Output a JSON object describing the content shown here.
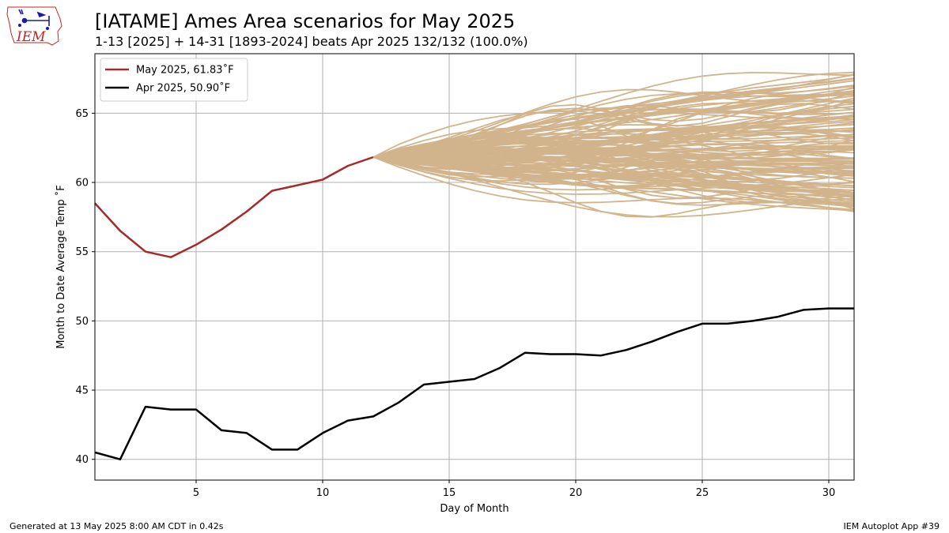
{
  "chart_data": {
    "type": "line",
    "title": "[IATAME] Ames Area scenarios for May 2025",
    "subtitle": "1-13 [2025] + 14-31 [1893-2024] beats Apr 2025 132/132 (100.0%)",
    "xlabel": "Day of Month",
    "ylabel": "Month to Date Average Temp ˚F",
    "xlim": [
      1,
      31
    ],
    "ylim": [
      38.5,
      69.3
    ],
    "xticks": [
      5,
      10,
      15,
      20,
      25,
      30
    ],
    "yticks": [
      40,
      45,
      50,
      55,
      60,
      65
    ],
    "grid": true,
    "legend_position": "top-left",
    "series": [
      {
        "name": "May 2025, 61.83˚F",
        "color": "#a52a2a",
        "x": [
          1,
          2,
          3,
          4,
          5,
          6,
          7,
          8,
          9,
          10,
          11,
          12
        ],
        "y": [
          58.5,
          56.5,
          55.0,
          54.6,
          55.5,
          56.6,
          57.9,
          59.4,
          59.8,
          60.2,
          61.2,
          61.83
        ]
      },
      {
        "name": "Apr 2025, 50.90˚F",
        "color": "#000000",
        "x": [
          1,
          2,
          3,
          4,
          5,
          6,
          7,
          8,
          9,
          10,
          11,
          12,
          13,
          14,
          15,
          16,
          17,
          18,
          19,
          20,
          21,
          22,
          23,
          24,
          25,
          26,
          27,
          28,
          29,
          30,
          31
        ],
        "y": [
          40.5,
          40.0,
          43.8,
          43.6,
          43.6,
          42.1,
          41.9,
          40.7,
          40.7,
          41.9,
          42.8,
          43.1,
          44.1,
          45.4,
          45.6,
          45.8,
          46.6,
          47.7,
          47.6,
          47.6,
          47.5,
          47.9,
          48.5,
          49.2,
          49.8,
          49.8,
          50.0,
          50.3,
          50.8,
          50.9,
          50.9
        ]
      }
    ],
    "scenarios": {
      "count": 132,
      "color": "#d2b48c",
      "start_x": 12,
      "start_y": 61.83,
      "end_x": 31,
      "min_final": 57.9,
      "max_final": 68.0
    }
  },
  "logo": {
    "text": "IEM"
  },
  "footer": {
    "left": "Generated at 13 May 2025 8:00 AM CDT in 0.42s",
    "right": "IEM Autoplot App #39"
  }
}
